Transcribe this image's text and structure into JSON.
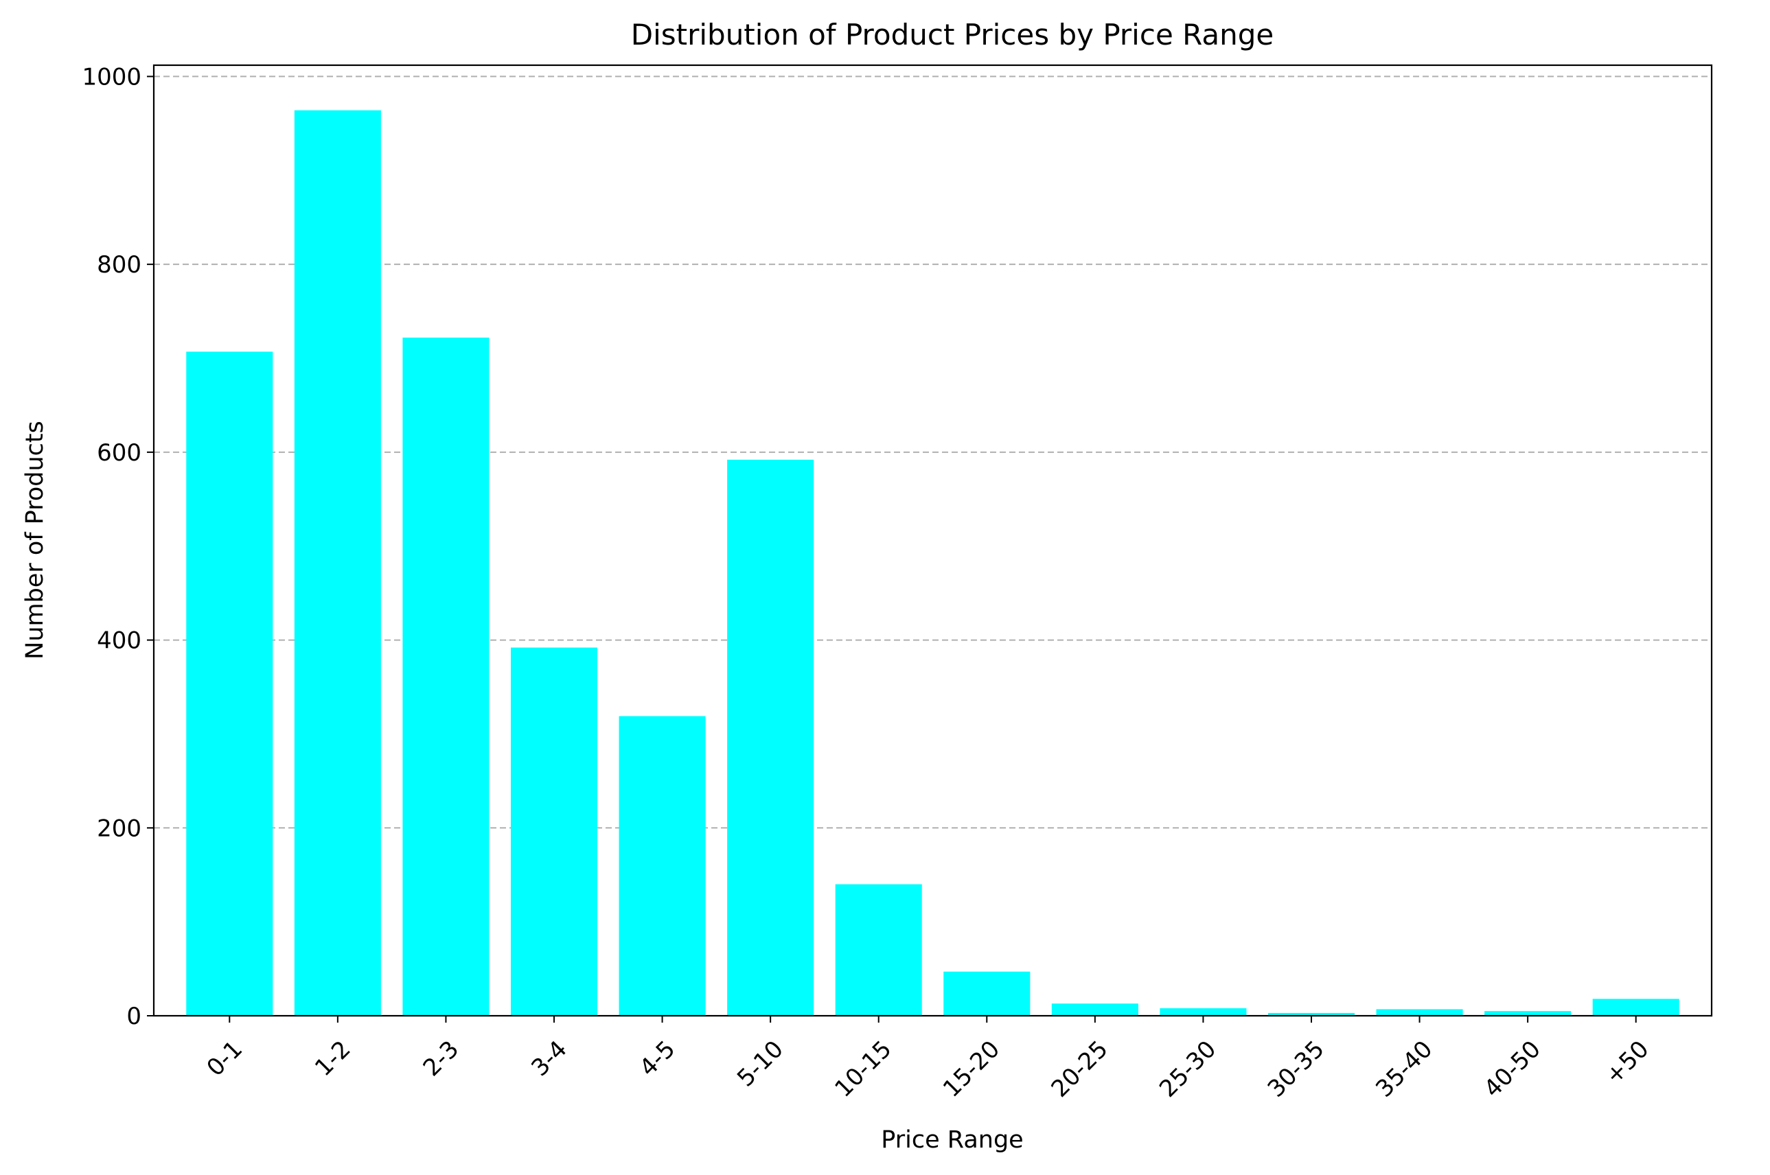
{
  "chart_data": {
    "type": "bar",
    "title": "Distribution of Product Prices by Price Range",
    "xlabel": "Price Range",
    "ylabel": "Number of Products",
    "categories": [
      "0-1",
      "1-2",
      "2-3",
      "3-4",
      "4-5",
      "5-10",
      "10-15",
      "15-20",
      "20-25",
      "25-30",
      "30-35",
      "35-40",
      "40-50",
      "+50"
    ],
    "values": [
      707,
      964,
      722,
      392,
      319,
      592,
      140,
      47,
      13,
      8,
      3,
      7,
      5,
      18
    ],
    "ylim": [
      0,
      1012
    ],
    "yticks": [
      0,
      200,
      400,
      600,
      800,
      1000
    ],
    "bar_color": "#00ffff",
    "grid": "y-dashed",
    "legend": "none"
  }
}
